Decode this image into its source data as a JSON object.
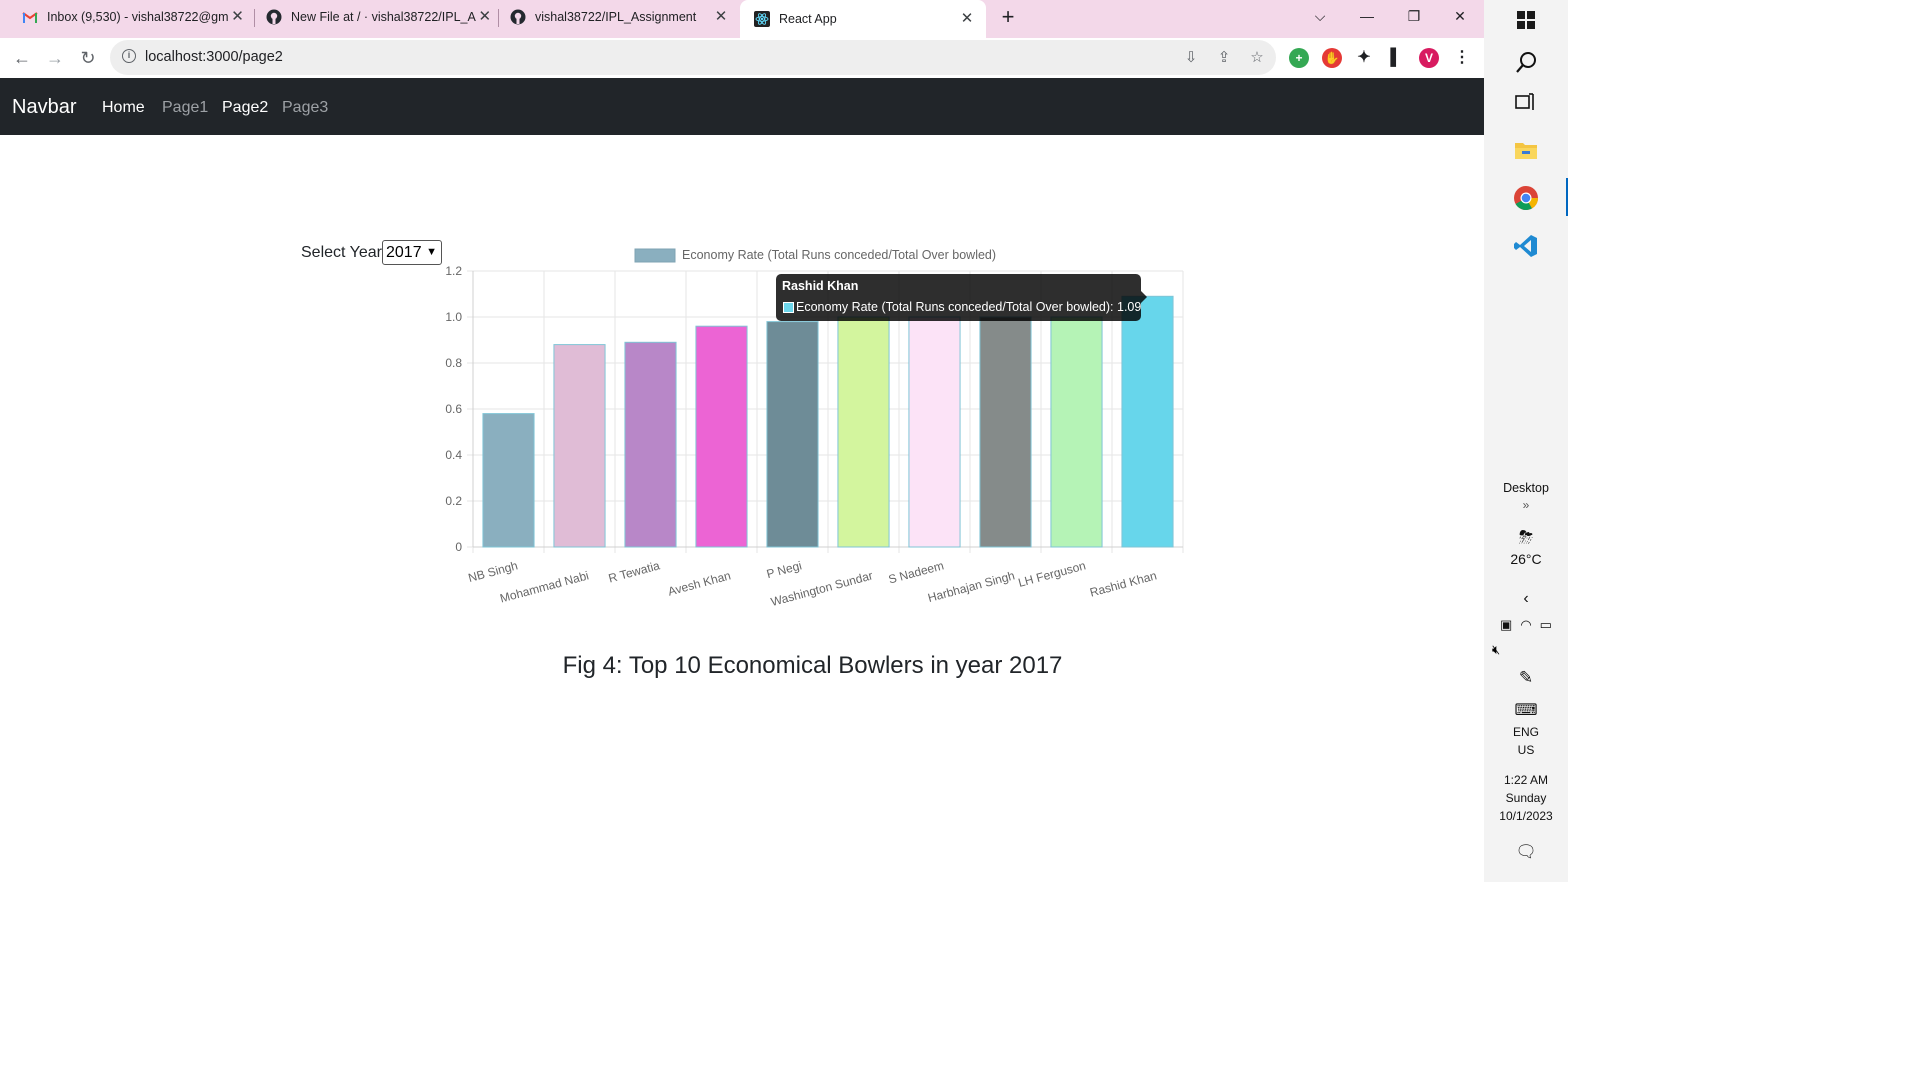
{
  "browser": {
    "tabs": [
      {
        "title": "Inbox (9,530) - vishal38722@gm",
        "icon": "gmail-icon"
      },
      {
        "title": "New File at / · vishal38722/IPL_A",
        "icon": "github-icon"
      },
      {
        "title": "vishal38722/IPL_Assignment",
        "icon": "github-icon"
      },
      {
        "title": "React App",
        "icon": "react-icon"
      }
    ],
    "address": "localhost:3000/page2",
    "profile_initial": "V"
  },
  "navbar": {
    "brand": "Navbar",
    "links": [
      "Home",
      "Page1",
      "Page2",
      "Page3"
    ]
  },
  "controls": {
    "year_label": "Select Year:",
    "year_value": "2017"
  },
  "chart_data": {
    "type": "bar",
    "legend": "Economy Rate (Total Runs conceded/Total Over bowled)",
    "legend_placement": "top",
    "categories": [
      "NB Singh",
      "Mohammad Nabi",
      "R Tewatia",
      "Avesh Khan",
      "P Negi",
      "Washington Sundar",
      "S Nadeem",
      "Harbhajan Singh",
      "LH Ferguson",
      "Rashid Khan"
    ],
    "values": [
      0.58,
      0.88,
      0.89,
      0.96,
      0.98,
      1.0,
      1.0,
      1.0,
      1.0,
      1.09
    ],
    "colors": [
      "#8aafbf",
      "#e0bcd6",
      "#b887c8",
      "#ec64d4",
      "#6e8c97",
      "#d3f59e",
      "#fce3f7",
      "#858b8a",
      "#b5f3b6",
      "#67d6eb"
    ],
    "ylim": [
      0,
      1.2
    ],
    "yticks": [
      "0",
      "0.2",
      "0.4",
      "0.6",
      "0.8",
      "1.0",
      "1.2"
    ],
    "grid": true
  },
  "tooltip": {
    "title": "Rashid Khan",
    "body": "Economy Rate (Total Runs conceded/Total Over bowled): 1.09"
  },
  "caption": "Fig 4: Top 10 Economical Bowlers in year 2017",
  "taskbar": {
    "desktop_label": "Desktop",
    "weather": "26°C",
    "lang1": "ENG",
    "lang2": "US",
    "time": "1:22 AM",
    "day": "Sunday",
    "date": "10/1/2023"
  }
}
